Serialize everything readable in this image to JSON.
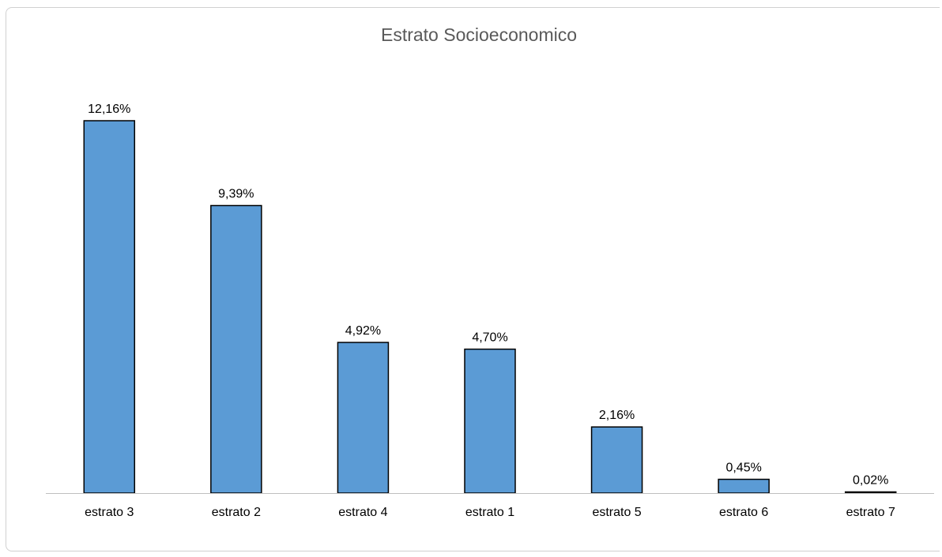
{
  "chart_data": {
    "type": "bar",
    "title": "Estrato Socioeconomico",
    "categories": [
      "estrato 3",
      "estrato 2",
      "estrato 4",
      "estrato 1",
      "estrato 5",
      "estrato 6",
      "estrato 7"
    ],
    "values": [
      12.16,
      9.39,
      4.92,
      4.7,
      2.16,
      0.45,
      0.02
    ],
    "data_labels": [
      "12,16%",
      "9,39%",
      "4,92%",
      "4,70%",
      "2,16%",
      "0,45%",
      "0,02%"
    ],
    "xlabel": "",
    "ylabel": "",
    "ylim": [
      0,
      12.16
    ],
    "grid": false,
    "legend": "none",
    "colors": {
      "bar_fill": "#5b9bd5",
      "bar_stroke": "#000000",
      "axis": "#bfbfbf",
      "title": "#595959"
    }
  }
}
